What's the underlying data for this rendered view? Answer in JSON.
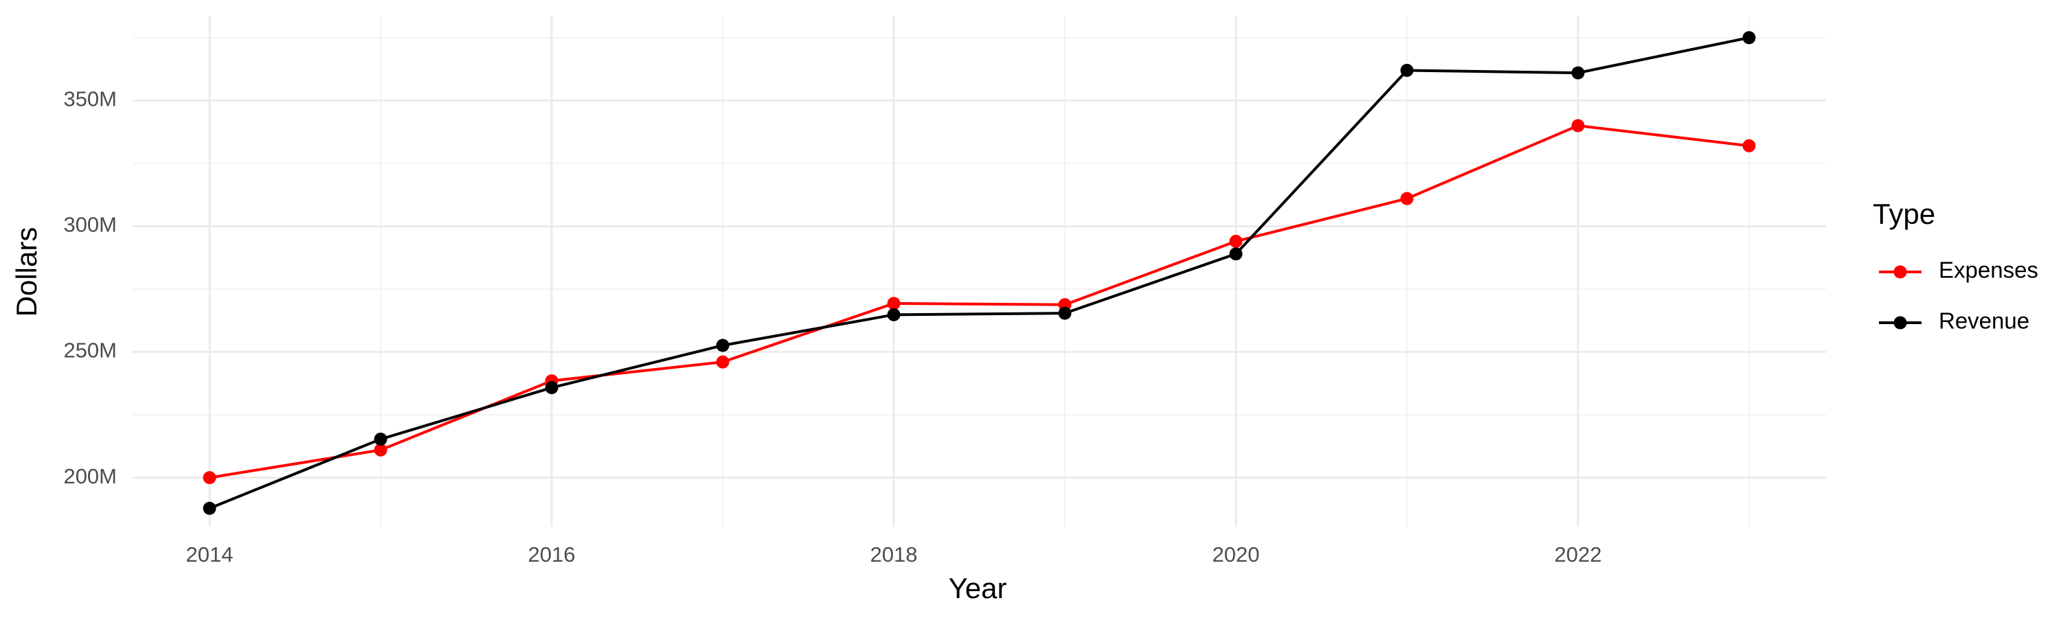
{
  "chart_data": {
    "type": "line",
    "x_label": "Year",
    "y_label": "Dollars",
    "legend_title": "Type",
    "x": [
      2014,
      2015,
      2016,
      2017,
      2018,
      2019,
      2020,
      2021,
      2022,
      2023
    ],
    "series": [
      {
        "name": "Expenses",
        "color": "#ff0000",
        "values": [
          200000000,
          211000000,
          238500000,
          246000000,
          269300000,
          268800000,
          294000000,
          311000000,
          340000000,
          332000000
        ]
      },
      {
        "name": "Revenue",
        "color": "#000000",
        "values": [
          187800000,
          215300000,
          235800000,
          252600000,
          264800000,
          265400000,
          289000000,
          362000000,
          361000000,
          375000000
        ]
      }
    ],
    "xlim": [
      2013.55,
      2023.45
    ],
    "xticks": [
      2014,
      2016,
      2018,
      2020,
      2022
    ],
    "x_minor_ticks": [
      2015,
      2017,
      2019,
      2021,
      2023
    ],
    "ylim": [
      180500000,
      383700000
    ],
    "yticks": [
      {
        "value": 200000000,
        "label": "200M"
      },
      {
        "value": 250000000,
        "label": "250M"
      },
      {
        "value": 300000000,
        "label": "300M"
      },
      {
        "value": 350000000,
        "label": "350M"
      }
    ],
    "y_minor_ticks": [
      225000000,
      275000000,
      325000000,
      375000000
    ],
    "grid": true,
    "legend_position": "right"
  }
}
